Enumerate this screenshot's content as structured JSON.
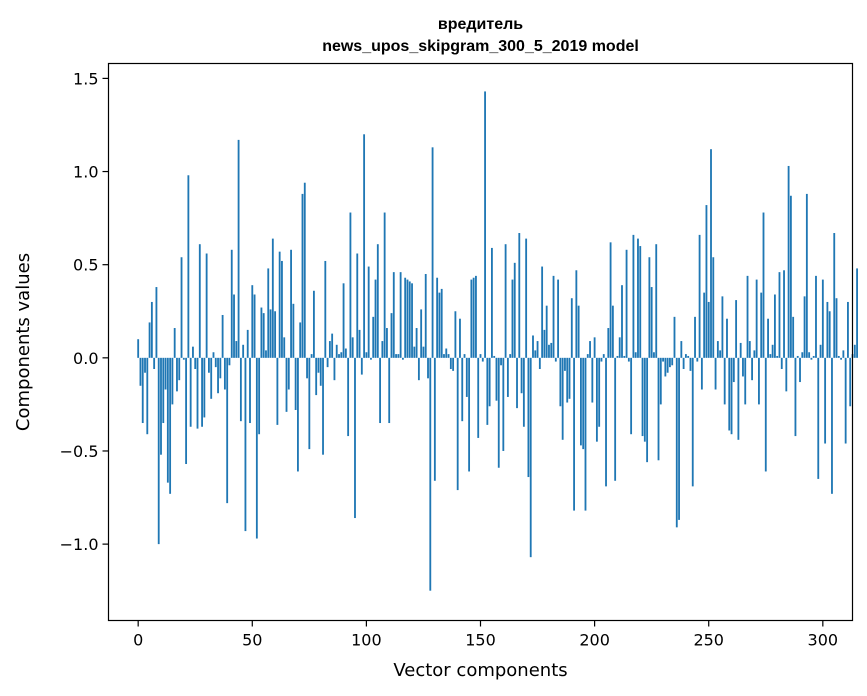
{
  "chart_data": {
    "type": "bar",
    "title_line1": "вредитель",
    "title_line2": "news_upos_skipgram_300_5_2019 model",
    "xlabel": "Vector components",
    "ylabel": "Components values",
    "xlim": [
      -13,
      313
    ],
    "ylim": [
      -1.41,
      1.58
    ],
    "xticks": [
      0,
      50,
      100,
      150,
      200,
      250,
      300
    ],
    "xtick_labels": [
      "0",
      "50",
      "100",
      "150",
      "200",
      "250",
      "300"
    ],
    "yticks": [
      -1.0,
      -0.5,
      0.0,
      0.5,
      1.0,
      1.5
    ],
    "ytick_labels": [
      "−1.0",
      "−0.5",
      "0.0",
      "0.5",
      "1.0",
      "1.5"
    ],
    "bar_color": "#1f77b4",
    "grid": false,
    "values": [
      0.1,
      -0.15,
      -0.35,
      -0.08,
      -0.41,
      0.19,
      0.3,
      -0.06,
      0.38,
      -1.0,
      -0.52,
      -0.35,
      -0.17,
      -0.67,
      -0.73,
      -0.25,
      0.16,
      -0.18,
      -0.12,
      0.54,
      -0.01,
      -0.57,
      0.98,
      -0.37,
      0.06,
      -0.06,
      -0.38,
      0.61,
      -0.37,
      -0.32,
      0.56,
      -0.08,
      -0.22,
      0.03,
      -0.05,
      -0.19,
      -0.11,
      0.23,
      -0.17,
      -0.78,
      -0.04,
      0.58,
      0.34,
      0.09,
      1.17,
      -0.34,
      0.07,
      -0.93,
      0.15,
      -0.35,
      0.39,
      0.34,
      -0.97,
      -0.41,
      0.27,
      0.24,
      0.04,
      0.48,
      0.26,
      0.64,
      0.25,
      -0.36,
      0.57,
      0.52,
      0.11,
      -0.29,
      -0.17,
      0.58,
      0.29,
      -0.28,
      -0.61,
      0.19,
      0.88,
      0.94,
      -0.11,
      -0.49,
      0.02,
      0.36,
      -0.2,
      -0.08,
      -0.15,
      -0.52,
      0.52,
      -0.05,
      0.09,
      0.13,
      -0.12,
      0.07,
      0.02,
      0.03,
      0.4,
      0.05,
      -0.42,
      0.78,
      0.11,
      -0.86,
      0.56,
      0.15,
      -0.09,
      1.2,
      0.03,
      0.49,
      -0.01,
      0.22,
      0.42,
      0.61,
      -0.35,
      0.09,
      0.78,
      0.16,
      -0.35,
      0.24,
      0.46,
      0.02,
      0.02,
      0.46,
      -0.01,
      0.43,
      0.42,
      0.41,
      0.4,
      0.06,
      0.16,
      -0.12,
      0.26,
      0.06,
      0.45,
      -0.11,
      -1.25,
      1.13,
      -0.66,
      0.43,
      0.35,
      0.37,
      0.02,
      0.05,
      0.02,
      -0.06,
      -0.07,
      0.25,
      -0.71,
      0.21,
      -0.34,
      0.02,
      -0.21,
      -0.61,
      0.42,
      0.43,
      0.44,
      -0.43,
      0.02,
      -0.02,
      1.43,
      -0.36,
      -0.26,
      0.59,
      0.01,
      -0.23,
      -0.59,
      -0.04,
      -0.5,
      0.61,
      -0.21,
      0.02,
      0.42,
      0.51,
      -0.27,
      0.67,
      -0.19,
      -0.37,
      0.64,
      -0.64,
      -1.07,
      0.12,
      0.04,
      0.09,
      -0.06,
      0.49,
      0.15,
      0.28,
      0.07,
      0.08,
      0.44,
      -0.02,
      0.42,
      -0.26,
      -0.44,
      -0.07,
      -0.24,
      -0.22,
      0.32,
      -0.82,
      0.47,
      0.28,
      -0.47,
      -0.49,
      -0.82,
      0.02,
      0.09,
      -0.24,
      0.11,
      -0.45,
      -0.37,
      -0.02,
      0.02,
      -0.69,
      0.16,
      0.62,
      0.28,
      -0.66,
      0.01,
      0.11,
      0.39,
      0.01,
      0.58,
      -0.02,
      -0.41,
      0.66,
      0.03,
      0.64,
      0.6,
      -0.42,
      -0.45,
      -0.56,
      0.54,
      0.38,
      0.03,
      0.61,
      -0.55,
      -0.25,
      -0.02,
      -0.1,
      -0.08,
      -0.05,
      -0.04,
      0.22,
      -0.91,
      -0.87,
      0.09,
      -0.06,
      0.02,
      0.01,
      -0.07,
      -0.69,
      0.22,
      -0.02,
      0.66,
      -0.17,
      0.35,
      0.82,
      0.3,
      1.12,
      0.54,
      -0.17,
      0.09,
      0.04,
      0.33,
      -0.25,
      0.21,
      -0.39,
      -0.41,
      -0.13,
      0.31,
      -0.44,
      0.08,
      -0.1,
      -0.25,
      0.44,
      0.09,
      -0.12,
      0.04,
      0.42,
      -0.25,
      0.35,
      0.78,
      -0.61,
      0.21,
      0.02,
      0.07,
      0.34,
      0.01,
      0.46,
      -0.06,
      0.47,
      -0.18,
      1.03,
      0.87,
      0.22,
      -0.42,
      0.01,
      -0.13,
      0.03,
      0.33,
      0.88,
      0.03,
      -0.01,
      0.01,
      0.44,
      -0.65,
      0.07,
      0.42,
      -0.46,
      0.3,
      0.25,
      -0.73,
      0.67,
      0.32,
      0.01,
      -0.01,
      0.04,
      -0.46,
      0.3,
      -0.26,
      0.02,
      0.07,
      0.48
    ]
  }
}
